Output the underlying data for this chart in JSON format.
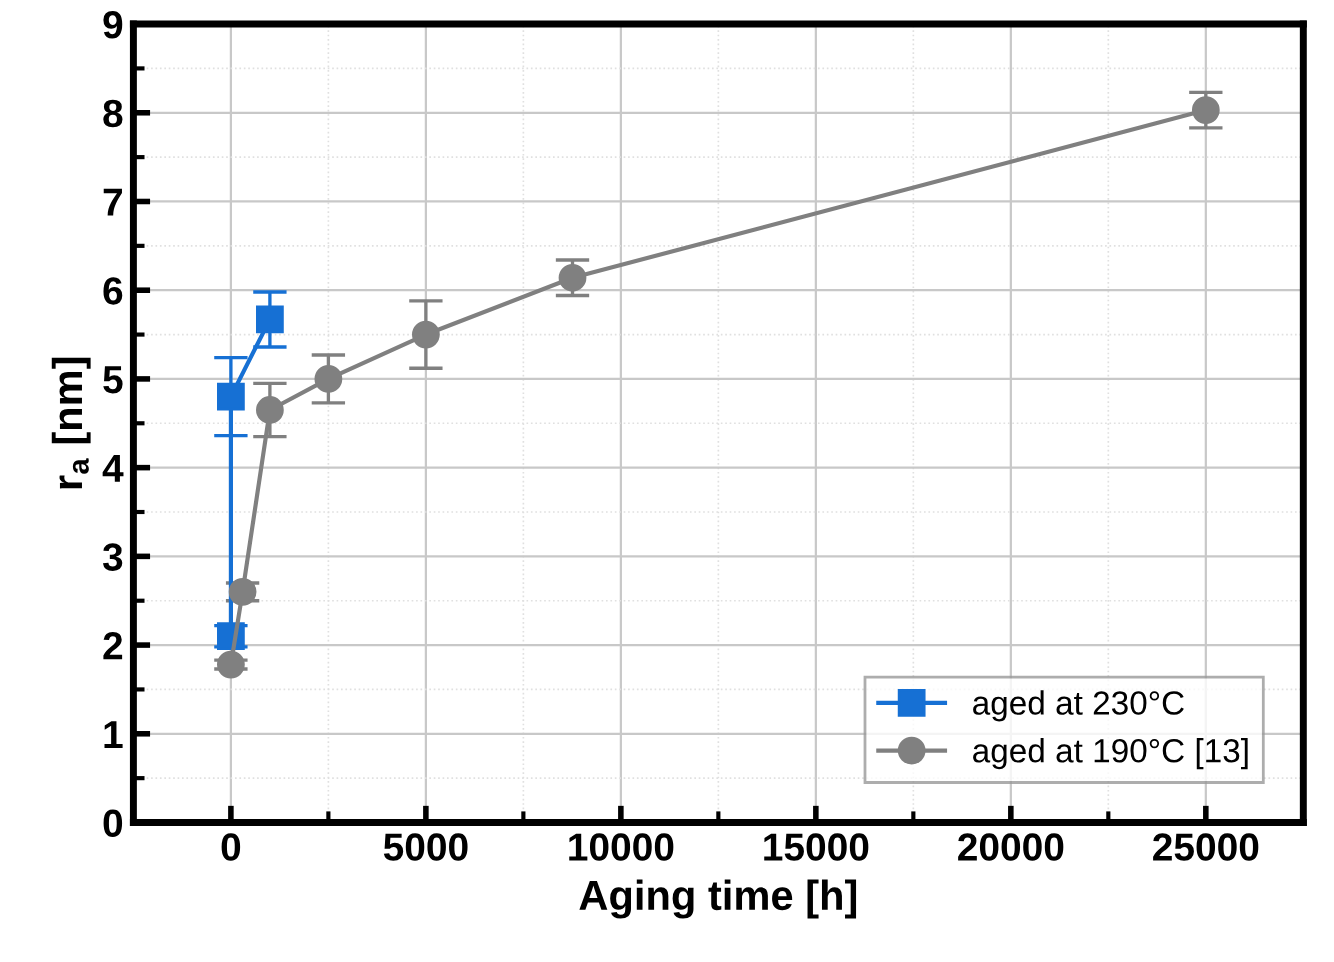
{
  "chart_data": {
    "type": "line",
    "xlabel": "Aging time [h]",
    "ylabel": "r$_{a}$ [nm]",
    "xlim": [
      -2500,
      27500
    ],
    "xticks": [
      0,
      5000,
      10000,
      15000,
      20000,
      25000
    ],
    "ylim": [
      0,
      9
    ],
    "yticks": [
      0,
      1,
      2,
      3,
      4,
      5,
      6,
      7,
      8,
      9
    ],
    "grid": true,
    "legend": "bottom right",
    "series": [
      {
        "name": "aged at 230°C",
        "color": "#1670d4",
        "marker": "square",
        "x": [
          0,
          0,
          1000
        ],
        "values": [
          2.1,
          4.8,
          5.67
        ],
        "errors": [
          0.12,
          0.44,
          0.31
        ]
      },
      {
        "name": "aged at 190°C [13]",
        "color": "#808080",
        "marker": "circle",
        "x": [
          0,
          300,
          1000,
          2500,
          5000,
          8760,
          25000
        ],
        "values": [
          1.78,
          2.6,
          4.65,
          5.0,
          5.5,
          6.14,
          8.03
        ],
        "errors": [
          0.05,
          0.1,
          0.3,
          0.27,
          0.38,
          0.2,
          0.2
        ]
      }
    ]
  }
}
